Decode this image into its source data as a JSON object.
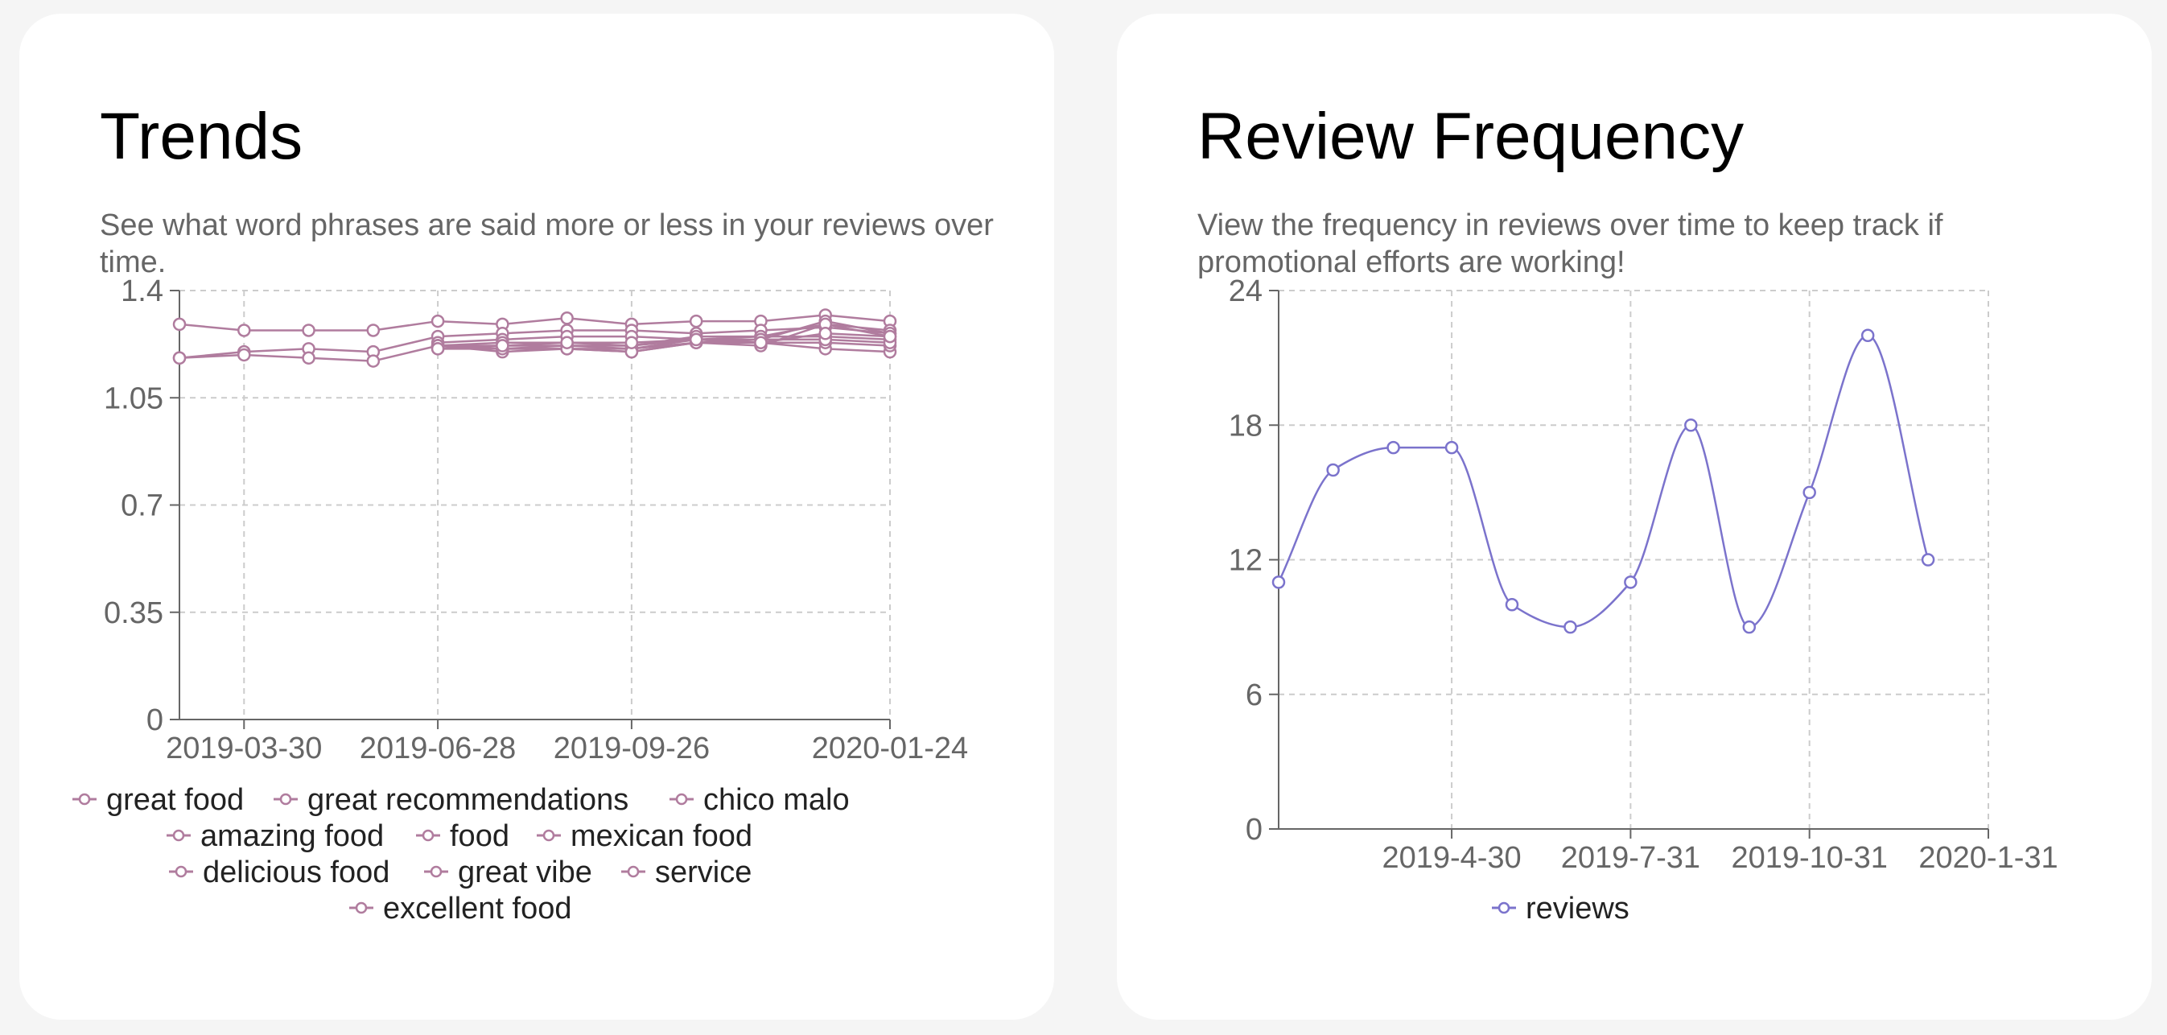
{
  "cards": [
    {
      "title": "Trends",
      "description": "See what word phrases are said more or less in your reviews over time."
    },
    {
      "title": "Review Frequency",
      "description": "View the frequency in reviews over time to keep track if promotional efforts are working!"
    }
  ],
  "chart_data": [
    {
      "type": "line",
      "xlabel": "",
      "ylabel": "",
      "ylim": [
        0,
        1.4
      ],
      "yticks": [
        0,
        0.35,
        0.7,
        1.05,
        1.4
      ],
      "yticklabels": [
        "0",
        "0.35",
        "0.7",
        "1.05",
        "1.4"
      ],
      "xticks": [
        "2019-03-30",
        "2019-06-28",
        "2019-09-26",
        "2020-01-24"
      ],
      "x": [
        "2019-02-28",
        "2019-03-30",
        "2019-04-29",
        "2019-05-29",
        "2019-06-28",
        "2019-07-28",
        "2019-08-27",
        "2019-09-26",
        "2019-10-26",
        "2019-11-25",
        "2019-12-25",
        "2020-01-24"
      ],
      "grid": true,
      "legend_position": "bottom",
      "color": "#b07c9e",
      "series": [
        {
          "name": "great food",
          "values": [
            1.29,
            1.27,
            1.27,
            1.27,
            1.3,
            1.29,
            1.31,
            1.29,
            1.3,
            1.3,
            1.32,
            1.3
          ]
        },
        {
          "name": "great recommendations",
          "values": [
            1.18,
            1.2,
            1.21,
            1.2,
            1.25,
            1.26,
            1.27,
            1.27,
            1.26,
            1.27,
            1.28,
            1.26
          ]
        },
        {
          "name": "chico malo",
          "values": [
            1.18,
            1.19,
            1.18,
            1.17,
            1.22,
            1.21,
            1.21,
            1.21,
            1.24,
            1.23,
            1.21,
            1.2
          ]
        },
        {
          "name": "amazing food",
          "values": [
            null,
            null,
            null,
            null,
            1.23,
            1.24,
            1.25,
            1.25,
            1.24,
            1.25,
            1.25,
            1.24
          ]
        },
        {
          "name": "food",
          "values": [
            null,
            null,
            null,
            null,
            1.22,
            1.23,
            1.23,
            1.22,
            1.25,
            1.25,
            1.29,
            1.27
          ]
        },
        {
          "name": "mexican food",
          "values": [
            null,
            null,
            null,
            null,
            1.22,
            1.22,
            1.22,
            1.22,
            1.24,
            1.24,
            1.3,
            1.26
          ]
        },
        {
          "name": "delicious food",
          "values": [
            null,
            null,
            null,
            null,
            1.22,
            1.21,
            1.22,
            1.21,
            1.23,
            1.22,
            1.29,
            1.25
          ]
        },
        {
          "name": "great vibe",
          "values": [
            null,
            null,
            null,
            null,
            1.22,
            1.2,
            1.21,
            1.2,
            1.23,
            1.23,
            1.23,
            1.22
          ]
        },
        {
          "name": "service",
          "values": [
            null,
            null,
            null,
            null,
            1.21,
            1.21,
            1.21,
            1.2,
            1.23,
            1.24,
            1.24,
            1.23
          ]
        },
        {
          "name": "excellent food",
          "values": [
            null,
            null,
            null,
            null,
            1.21,
            1.22,
            1.23,
            1.23,
            1.24,
            1.23,
            1.26,
            1.25
          ]
        }
      ]
    },
    {
      "type": "line",
      "xlabel": "",
      "ylabel": "",
      "ylim": [
        0,
        24
      ],
      "yticks": [
        0,
        6,
        12,
        18,
        24
      ],
      "yticklabels": [
        "0",
        "6",
        "12",
        "18",
        "24"
      ],
      "xticks": [
        "2019-4-30",
        "2019-7-31",
        "2019-10-31",
        "2020-1-31"
      ],
      "x": [
        "2019-01-31",
        "2019-02-28",
        "2019-03-31",
        "2019-04-30",
        "2019-05-31",
        "2019-06-30",
        "2019-07-31",
        "2019-08-31",
        "2019-09-30",
        "2019-10-31",
        "2019-11-30",
        "2019-12-31",
        "2020-01-31"
      ],
      "grid": true,
      "legend_position": "bottom",
      "color": "#7b73cc",
      "series": [
        {
          "name": "reviews",
          "values": [
            11,
            16,
            17,
            17,
            10,
            9,
            11,
            18,
            9,
            15,
            22,
            12,
            null
          ]
        }
      ]
    }
  ]
}
